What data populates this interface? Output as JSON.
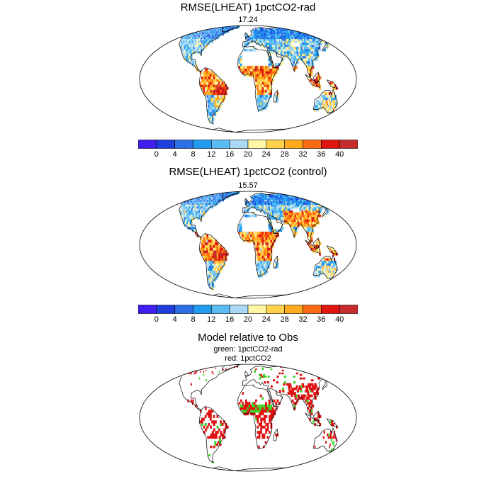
{
  "panels": [
    {
      "title": "RMSE(LHEAT) 1pctCO2-rad",
      "value": "17.24"
    },
    {
      "title": "RMSE(LHEAT) 1pctCO2 (control)",
      "value": "15.57"
    }
  ],
  "comparison": {
    "title": "Model relative to Obs",
    "legend_green": "green: 1pctCO2-rad",
    "legend_red": "red: 1pctCO2"
  },
  "colorbar": {
    "labels": [
      "0",
      "4",
      "8",
      "12",
      "16",
      "20",
      "24",
      "28",
      "32",
      "36",
      "40"
    ],
    "colors": [
      "#3f1ff0",
      "#1e3fdc",
      "#2b6fe6",
      "#1f9cf0",
      "#5bbcf3",
      "#a9d9f5",
      "#fff7a6",
      "#ffd24a",
      "#ffab1e",
      "#ff6a12",
      "#e0150f",
      "#c72c2c"
    ]
  },
  "colors": {
    "green": "#3fd62a",
    "red": "#e01212",
    "land_base": "#3b82e0"
  }
}
